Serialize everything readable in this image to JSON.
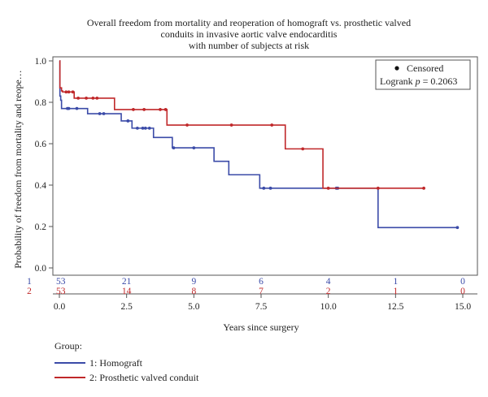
{
  "chart_data": {
    "type": "line",
    "subtype": "kaplan-meier",
    "title": [
      "Overall freedom from mortality and reoperation of homograft vs. prosthetic valved",
      "conduits in invasive aortic valve endocarditis",
      "with number of subjects at risk"
    ],
    "xlabel": "Years since surgery",
    "ylabel": "Probability of freedom from mortality and reope…",
    "xlim": [
      0,
      15
    ],
    "ylim": [
      0,
      1
    ],
    "x_ticks": [
      "0.0",
      "2.5",
      "5.0",
      "7.5",
      "10.0",
      "12.5",
      "15.0"
    ],
    "y_ticks": [
      "0.0",
      "0.2",
      "0.4",
      "0.6",
      "0.8",
      "1.0"
    ],
    "legend_box": {
      "position": "top-right",
      "censored_label": "Censored",
      "logrank_prefix": "Logrank ",
      "logrank_p_symbol": "p",
      "logrank_value": " = 0.2063"
    },
    "group_legend": {
      "title": "Group:",
      "items": [
        {
          "label": "1: Homograft",
          "color": "#3b4ba8"
        },
        {
          "label": "2: Prosthetic valved conduit",
          "color": "#c0282a"
        }
      ]
    },
    "series": [
      {
        "name": "1: Homograft",
        "color": "#3b4ba8",
        "steps": [
          [
            0,
            1.0
          ],
          [
            0.02,
            0.83
          ],
          [
            0.05,
            0.81
          ],
          [
            0.08,
            0.77
          ],
          [
            1.05,
            0.745
          ],
          [
            2.3,
            0.71
          ],
          [
            2.7,
            0.675
          ],
          [
            3.5,
            0.63
          ],
          [
            4.2,
            0.58
          ],
          [
            5.75,
            0.515
          ],
          [
            6.3,
            0.45
          ],
          [
            7.45,
            0.385
          ],
          [
            11.85,
            0.195
          ],
          [
            14.8,
            0.195
          ]
        ],
        "censored": [
          [
            0.3,
            0.77
          ],
          [
            0.35,
            0.77
          ],
          [
            0.65,
            0.77
          ],
          [
            1.5,
            0.745
          ],
          [
            1.65,
            0.745
          ],
          [
            2.55,
            0.71
          ],
          [
            2.9,
            0.675
          ],
          [
            3.1,
            0.675
          ],
          [
            3.2,
            0.675
          ],
          [
            3.35,
            0.675
          ],
          [
            4.25,
            0.58
          ],
          [
            5.0,
            0.58
          ],
          [
            7.6,
            0.385
          ],
          [
            7.85,
            0.385
          ],
          [
            10.3,
            0.385
          ],
          [
            10.35,
            0.385
          ],
          [
            14.8,
            0.195
          ]
        ],
        "at_risk_label": "1",
        "at_risk": [
          "53",
          "21",
          "9",
          "6",
          "4",
          "1",
          "0"
        ]
      },
      {
        "name": "2: Prosthetic valved conduit",
        "color": "#c0282a",
        "steps": [
          [
            0,
            1.0
          ],
          [
            0.02,
            0.87
          ],
          [
            0.08,
            0.855
          ],
          [
            0.12,
            0.85
          ],
          [
            0.55,
            0.82
          ],
          [
            2.05,
            0.765
          ],
          [
            4.0,
            0.69
          ],
          [
            8.4,
            0.575
          ],
          [
            9.8,
            0.385
          ],
          [
            13.55,
            0.385
          ]
        ],
        "censored": [
          [
            0.25,
            0.85
          ],
          [
            0.35,
            0.85
          ],
          [
            0.5,
            0.85
          ],
          [
            0.7,
            0.82
          ],
          [
            1.0,
            0.82
          ],
          [
            1.25,
            0.82
          ],
          [
            1.4,
            0.82
          ],
          [
            2.75,
            0.765
          ],
          [
            3.15,
            0.765
          ],
          [
            3.75,
            0.765
          ],
          [
            3.95,
            0.765
          ],
          [
            4.75,
            0.69
          ],
          [
            6.4,
            0.69
          ],
          [
            7.9,
            0.69
          ],
          [
            9.05,
            0.575
          ],
          [
            10.0,
            0.385
          ],
          [
            11.85,
            0.385
          ],
          [
            13.55,
            0.385
          ]
        ],
        "at_risk_label": "2",
        "at_risk": [
          "53",
          "14",
          "8",
          "7",
          "2",
          "1",
          "0"
        ]
      }
    ],
    "at_risk_x": [
      0,
      2.5,
      5.0,
      7.5,
      10.0,
      12.5,
      15.0
    ],
    "grid": false
  }
}
